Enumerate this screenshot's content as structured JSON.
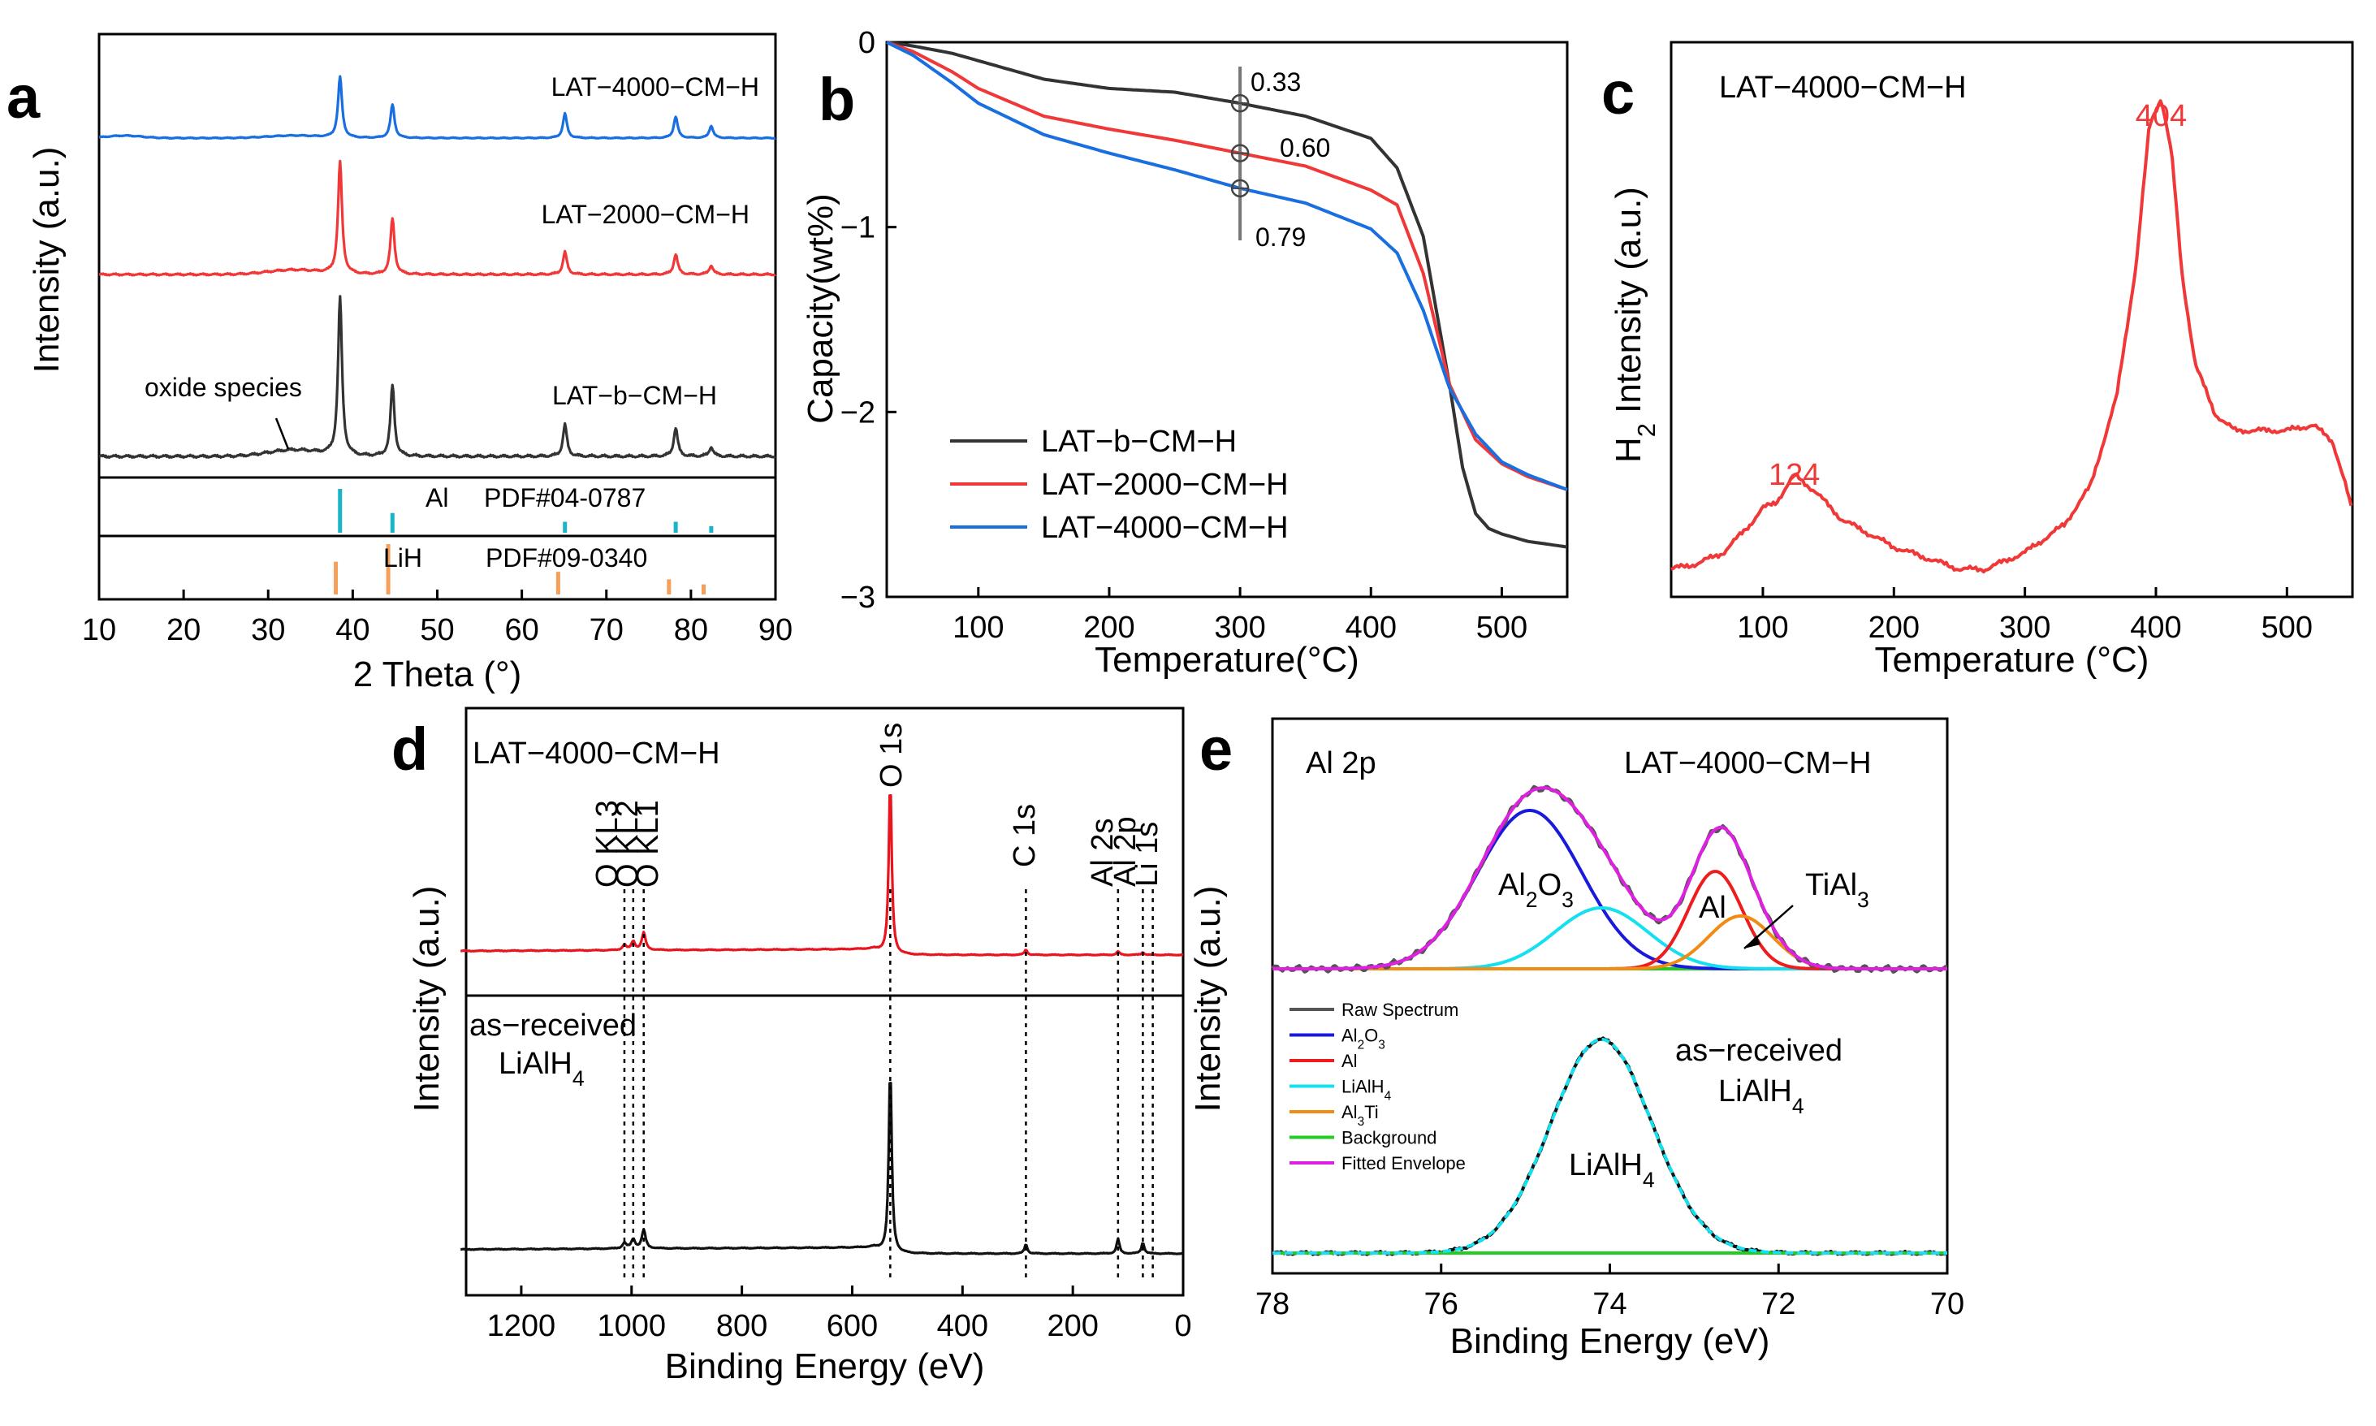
{
  "figure": "Five-panel materials characterization figure",
  "colors": {
    "black": "#333333",
    "red": "#f03838",
    "blue": "#1a6fe0",
    "cyan": "#1ab3c8",
    "orange": "#f5a05a",
    "xps_black": "#111111",
    "xps_red": "#e8141e",
    "gray": "#555555",
    "fit_blue": "#1a1adc",
    "fit_red": "#ee1c1c",
    "fit_cyan": "#14e0f0",
    "fit_orange": "#f08c14",
    "fit_green": "#22cc22",
    "fit_magenta": "#e020e0",
    "dashed_black": "#000000"
  },
  "chart_data": [
    {
      "id": "a",
      "panel_label": "a",
      "type": "line",
      "xlabel": "2 Theta (°)",
      "ylabel": "Intensity (a.u.)",
      "xlim": [
        10,
        90
      ],
      "xticks": [
        10,
        20,
        30,
        40,
        50,
        60,
        70,
        80,
        90
      ],
      "series": [
        {
          "name": "LAT-4000-CM-H",
          "label": "LAT−4000−CM−H",
          "color": "blue",
          "offset": 2.2,
          "scale": 0.18,
          "peaks": [
            [
              38.5,
              1.0
            ],
            [
              44.7,
              0.55
            ],
            [
              65.1,
              0.4
            ],
            [
              78.2,
              0.35
            ],
            [
              82.4,
              0.2
            ]
          ]
        },
        {
          "name": "LAT-2000-CM-H",
          "label": "LAT−2000−CM−H",
          "color": "red",
          "offset": 1.1,
          "scale": 0.6,
          "peaks": [
            [
              38.5,
              1.0
            ],
            [
              44.7,
              0.5
            ],
            [
              65.1,
              0.2
            ],
            [
              78.2,
              0.18
            ],
            [
              82.4,
              0.08
            ]
          ]
        },
        {
          "name": "LAT-b-CM-H",
          "label": "LAT−b−CM−H",
          "color": "black",
          "offset": 0.0,
          "scale": 0.85,
          "peaks": [
            [
              38.5,
              1.0
            ],
            [
              44.7,
              0.45
            ],
            [
              65.1,
              0.2
            ],
            [
              78.2,
              0.18
            ],
            [
              82.4,
              0.06
            ]
          ]
        }
      ],
      "annotation": "oxide species",
      "references": [
        {
          "phase": "Al",
          "pdf": "PDF#04-0787",
          "color": "cyan",
          "lines": [
            [
              38.5,
              1.0
            ],
            [
              44.7,
              0.45
            ],
            [
              65.1,
              0.25
            ],
            [
              78.2,
              0.25
            ],
            [
              82.4,
              0.15
            ]
          ]
        },
        {
          "phase": "LiH",
          "pdf": "PDF#09-0340",
          "color": "orange",
          "lines": [
            [
              38.0,
              0.65
            ],
            [
              44.2,
              1.0
            ],
            [
              64.3,
              0.45
            ],
            [
              77.4,
              0.3
            ],
            [
              81.5,
              0.2
            ]
          ]
        }
      ]
    },
    {
      "id": "b",
      "panel_label": "b",
      "type": "line",
      "xlabel": "Temperature(°C)",
      "ylabel": "Capacity(wt%)",
      "xlim": [
        30,
        550
      ],
      "ylim": [
        -3,
        0
      ],
      "xticks": [
        100,
        200,
        300,
        400,
        500
      ],
      "yticks": [
        0,
        -1,
        -2,
        -3
      ],
      "series": [
        {
          "name": "LAT-b-CM-H",
          "label": "LAT−b−CM−H",
          "color": "black",
          "x": [
            30,
            50,
            80,
            100,
            150,
            200,
            250,
            300,
            350,
            400,
            420,
            440,
            460,
            470,
            480,
            490,
            500,
            520,
            550
          ],
          "y": [
            0,
            -0.02,
            -0.06,
            -0.1,
            -0.2,
            -0.25,
            -0.27,
            -0.33,
            -0.4,
            -0.52,
            -0.68,
            -1.05,
            -1.85,
            -2.3,
            -2.55,
            -2.63,
            -2.66,
            -2.7,
            -2.73
          ]
        },
        {
          "name": "LAT-2000-CM-H",
          "label": "LAT−2000−CM−H",
          "color": "red",
          "x": [
            30,
            50,
            80,
            100,
            150,
            200,
            250,
            300,
            350,
            400,
            420,
            440,
            460,
            480,
            500,
            520,
            550
          ],
          "y": [
            0,
            -0.05,
            -0.16,
            -0.25,
            -0.4,
            -0.47,
            -0.53,
            -0.6,
            -0.67,
            -0.8,
            -0.88,
            -1.25,
            -1.85,
            -2.15,
            -2.28,
            -2.35,
            -2.42
          ]
        },
        {
          "name": "LAT-4000-CM-H",
          "label": "LAT−4000−CM−H",
          "color": "blue",
          "x": [
            30,
            50,
            80,
            100,
            150,
            200,
            250,
            300,
            350,
            400,
            420,
            440,
            460,
            480,
            500,
            520,
            550
          ],
          "y": [
            0,
            -0.07,
            -0.22,
            -0.33,
            -0.5,
            -0.6,
            -0.69,
            -0.79,
            -0.87,
            -1.01,
            -1.14,
            -1.45,
            -1.87,
            -2.12,
            -2.27,
            -2.34,
            -2.42
          ]
        }
      ],
      "marker_x": 300,
      "annotations": [
        "0.33",
        "0.60",
        "0.79"
      ],
      "legend_position": "bottom-left"
    },
    {
      "id": "c",
      "panel_label": "c",
      "type": "line",
      "title": "LAT-4000-CM-H",
      "title_display": "LAT−4000−CM−H",
      "xlabel": "Temperature (°C)",
      "ylabel": "H₂ Intensity (a.u.)",
      "xlim": [
        30,
        550
      ],
      "ylim": [
        0,
        1.0
      ],
      "xticks": [
        100,
        200,
        300,
        400,
        500
      ],
      "series": [
        {
          "name": "H2 signal",
          "color": "red",
          "x": [
            30,
            50,
            70,
            90,
            100,
            110,
            124,
            140,
            160,
            200,
            250,
            270,
            300,
            330,
            350,
            370,
            385,
            395,
            404,
            412,
            420,
            430,
            445,
            460,
            480,
            500,
            520,
            535,
            545,
            550
          ],
          "y": [
            0.05,
            0.06,
            0.08,
            0.13,
            0.16,
            0.17,
            0.22,
            0.19,
            0.14,
            0.09,
            0.05,
            0.05,
            0.08,
            0.13,
            0.2,
            0.36,
            0.6,
            0.85,
            0.9,
            0.8,
            0.58,
            0.42,
            0.33,
            0.3,
            0.3,
            0.3,
            0.31,
            0.28,
            0.2,
            0.15
          ]
        }
      ],
      "peak_labels": [
        "124",
        "404"
      ]
    },
    {
      "id": "d",
      "panel_label": "d",
      "type": "line",
      "xlabel": "Binding Energy (eV)",
      "ylabel": "Intensity (a.u.)",
      "xlim": [
        1300,
        0
      ],
      "xticks": [
        1200,
        1000,
        800,
        600,
        400,
        200,
        0
      ],
      "series": [
        {
          "name": "LAT-4000-CM-H",
          "color": "xps_red",
          "label": "LAT−4000−CM−H",
          "scale": 0.55
        },
        {
          "name": "as-received LiAlH4",
          "color": "xps_black",
          "label_line1": "as−received",
          "label_line2": "LiAlH4",
          "scale": 0.55
        }
      ],
      "peak_markers": [
        {
          "label": "O KL3",
          "x": 1013
        },
        {
          "label": "O KL2",
          "x": 997
        },
        {
          "label": "O KL1",
          "x": 978
        },
        {
          "label": "O 1s",
          "x": 531
        },
        {
          "label": "C 1s",
          "x": 285
        },
        {
          "label": "Al 2s",
          "x": 118
        },
        {
          "label": "Al 2p",
          "x": 73
        },
        {
          "label": "Li 1s",
          "x": 55
        }
      ]
    },
    {
      "id": "e",
      "panel_label": "e",
      "type": "line",
      "title": "Al 2p",
      "sample": "LAT−4000−CM−H",
      "xlabel": "Binding Energy (eV)",
      "ylabel": "Intensity (a.u.)",
      "xlim": [
        78,
        70
      ],
      "xticks": [
        78,
        76,
        74,
        72,
        70
      ],
      "fit_components": [
        {
          "name": "Al2O3",
          "color": "fit_blue",
          "center": 74.95,
          "sigma": 0.62,
          "height": 0.78
        },
        {
          "name": "LiAlH4",
          "color": "fit_cyan",
          "center": 74.1,
          "sigma": 0.55,
          "height": 0.3
        },
        {
          "name": "Al",
          "color": "fit_red",
          "center": 72.75,
          "sigma": 0.32,
          "height": 0.48
        },
        {
          "name": "Al3Ti",
          "color": "fit_orange",
          "center": 72.45,
          "sigma": 0.38,
          "height": 0.26
        }
      ],
      "lower_spectrum": {
        "name": "as-received LiAlH4",
        "center": 74.1,
        "sigma": 0.6,
        "height": 1.0
      },
      "labels": {
        "al2o3": "Al2O3",
        "al": "Al",
        "tial3": "TiAl3",
        "lower_line1": "as−received",
        "lower_line2": "LiAlH4",
        "lower_peak": "LiAlH4"
      },
      "legend": [
        "Raw Spectrum",
        "Al2O3",
        "Al",
        "LiAlH4",
        "Al3Ti",
        "Background",
        "Fitted Envelope"
      ],
      "legend_colors": [
        "gray",
        "fit_blue",
        "fit_red",
        "fit_cyan",
        "fit_orange",
        "fit_green",
        "fit_magenta"
      ]
    }
  ]
}
